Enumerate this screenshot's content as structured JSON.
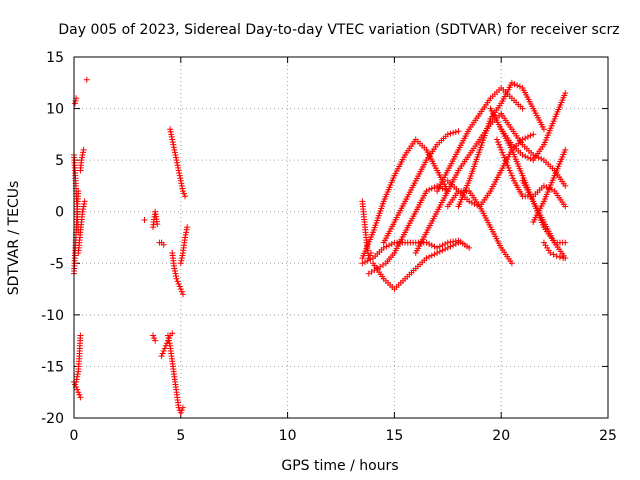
{
  "chart_data": {
    "type": "scatter",
    "title": "Day 005 of 2023, Sidereal Day-to-day VTEC variation (SDTVAR) for receiver scrz",
    "xlabel": "GPS time / hours",
    "ylabel": "SDTVAR / TECUs",
    "xlim": [
      0,
      25
    ],
    "ylim": [
      -20,
      15
    ],
    "xticks": [
      0,
      5,
      10,
      15,
      20,
      25
    ],
    "yticks": [
      -20,
      -15,
      -10,
      -5,
      0,
      5,
      10,
      15
    ],
    "xtick_labels": [
      "0",
      "5",
      "10",
      "15",
      "20",
      "25"
    ],
    "ytick_labels": [
      "-20",
      "-15",
      "-10",
      "-5",
      "0",
      "5",
      "10",
      "15"
    ],
    "grid": true,
    "marker": "+",
    "color": "#ff0000",
    "series": [
      {
        "name": "s1",
        "x": [
          0.0,
          0.1,
          0.2,
          0.3
        ],
        "y": [
          -16.5,
          -17.0,
          -17.5,
          -18.0
        ]
      },
      {
        "name": "s2",
        "x": [
          0.1,
          0.2,
          0.25,
          0.3
        ],
        "y": [
          -16.5,
          -15.5,
          -14.0,
          -12.0
        ]
      },
      {
        "name": "s3",
        "x": [
          0.0,
          0.05,
          0.1,
          0.15,
          0.2
        ],
        "y": [
          -6.0,
          -4.0,
          -2.0,
          0.0,
          2.0
        ]
      },
      {
        "name": "s4",
        "x": [
          0.0,
          0.05,
          0.1,
          0.15,
          0.2
        ],
        "y": [
          5.5,
          4.0,
          2.0,
          0.0,
          -2.0
        ]
      },
      {
        "name": "s5",
        "x": [
          0.2,
          0.3,
          0.4,
          0.5
        ],
        "y": [
          -4.0,
          -2.0,
          0.0,
          1.0
        ]
      },
      {
        "name": "s6",
        "x": [
          0.3,
          0.35,
          0.4,
          0.45
        ],
        "y": [
          4.0,
          5.0,
          5.5,
          6.0
        ]
      },
      {
        "name": "s7",
        "x": [
          0.05,
          0.1
        ],
        "y": [
          10.5,
          11.0
        ]
      },
      {
        "name": "s8",
        "x": [
          0.6
        ],
        "y": [
          12.8
        ]
      },
      {
        "name": "s9",
        "x": [
          3.3
        ],
        "y": [
          -0.8
        ]
      },
      {
        "name": "s10",
        "x": [
          3.7,
          3.8,
          3.9
        ],
        "y": [
          -1.5,
          0.0,
          -1.2
        ]
      },
      {
        "name": "s11",
        "x": [
          3.7,
          3.8
        ],
        "y": [
          -12.0,
          -12.5
        ]
      },
      {
        "name": "s12",
        "x": [
          4.0,
          4.1,
          4.2
        ],
        "y": [
          -3.0,
          -3.0,
          -3.2
        ]
      },
      {
        "name": "s13",
        "x": [
          4.1,
          4.2,
          4.3,
          4.4,
          4.5,
          4.6
        ],
        "y": [
          -14.0,
          -13.5,
          -13.0,
          -12.5,
          -12.0,
          -11.8
        ]
      },
      {
        "name": "s14",
        "x": [
          4.4,
          4.5,
          4.6,
          4.7,
          4.8,
          4.9,
          5.0,
          5.1
        ],
        "y": [
          -12.0,
          -13.0,
          -14.5,
          -16.0,
          -17.5,
          -19.0,
          -19.5,
          -19.0
        ]
      },
      {
        "name": "s15",
        "x": [
          4.5,
          4.6,
          4.7,
          4.8,
          4.9,
          5.0,
          5.1,
          5.2
        ],
        "y": [
          8.0,
          7.0,
          6.0,
          5.0,
          4.0,
          3.0,
          2.0,
          1.5
        ]
      },
      {
        "name": "s16",
        "x": [
          4.6,
          4.7,
          4.8,
          4.9,
          5.0,
          5.1
        ],
        "y": [
          -4.0,
          -5.5,
          -6.5,
          -7.0,
          -7.5,
          -8.0
        ]
      },
      {
        "name": "s17",
        "x": [
          5.0,
          5.1,
          5.2,
          5.3
        ],
        "y": [
          -5.0,
          -4.0,
          -2.5,
          -1.5
        ]
      },
      {
        "name": "s18",
        "x": [
          13.5,
          13.6,
          13.7,
          13.8,
          13.9
        ],
        "y": [
          1.0,
          -1.0,
          -3.0,
          -4.5,
          -4.0
        ]
      },
      {
        "name": "s19",
        "x": [
          13.5,
          14.0,
          14.5,
          15.0,
          15.5,
          16.0,
          16.5,
          17.0,
          17.5
        ],
        "y": [
          -4.5,
          -2.0,
          1.0,
          3.5,
          5.5,
          7.0,
          6.0,
          4.0,
          2.0
        ]
      },
      {
        "name": "s20",
        "x": [
          13.5,
          14.0,
          14.5,
          15.0,
          15.5,
          16.0,
          16.5,
          17.0,
          17.5,
          18.0,
          18.5
        ],
        "y": [
          -5.0,
          -4.5,
          -3.5,
          -3.0,
          -3.0,
          -3.0,
          -3.0,
          -3.5,
          -3.0,
          -2.8,
          -3.5
        ]
      },
      {
        "name": "s21",
        "x": [
          13.8,
          14.2,
          14.6,
          15.0,
          15.5,
          16.0,
          16.5,
          17.0,
          17.5
        ],
        "y": [
          -6.0,
          -5.5,
          -5.0,
          -4.0,
          -2.0,
          0.0,
          2.0,
          2.5,
          2.0
        ]
      },
      {
        "name": "s22",
        "x": [
          14.0,
          14.5,
          15.0,
          15.5,
          16.0,
          16.5,
          17.0,
          17.5,
          18.0
        ],
        "y": [
          -5.0,
          -6.5,
          -7.5,
          -6.5,
          -5.5,
          -4.5,
          -4.0,
          -3.5,
          -3.0
        ]
      },
      {
        "name": "s23",
        "x": [
          14.5,
          15.0,
          15.5,
          16.0,
          16.5,
          17.0,
          17.5,
          18.0
        ],
        "y": [
          -3.0,
          -1.0,
          1.0,
          3.0,
          5.0,
          6.5,
          7.5,
          7.8
        ]
      },
      {
        "name": "s24",
        "x": [
          16.0,
          16.5,
          17.0,
          17.5,
          18.0,
          18.5,
          19.0,
          19.5,
          20.0
        ],
        "y": [
          -4.0,
          -2.0,
          0.0,
          2.0,
          4.0,
          5.5,
          7.0,
          8.5,
          9.5
        ]
      },
      {
        "name": "s25",
        "x": [
          17.0,
          17.5,
          18.0,
          18.5,
          19.0,
          19.5,
          20.0,
          20.5,
          21.0
        ],
        "y": [
          2.0,
          4.0,
          6.0,
          8.0,
          9.5,
          11.0,
          12.0,
          11.0,
          10.0
        ]
      },
      {
        "name": "s26",
        "x": [
          18.0,
          18.5,
          19.0,
          19.5,
          20.0,
          20.5,
          21.0,
          21.5,
          22.0
        ],
        "y": [
          0.5,
          3.0,
          6.0,
          9.0,
          10.5,
          12.5,
          12.0,
          10.0,
          8.0
        ]
      },
      {
        "name": "s27",
        "x": [
          17.5,
          18.0,
          18.5,
          19.0,
          19.5,
          20.0,
          20.5
        ],
        "y": [
          0.5,
          2.0,
          2.0,
          0.5,
          -1.5,
          -3.5,
          -5.0
        ]
      },
      {
        "name": "s28",
        "x": [
          17.5,
          18.0,
          18.5,
          19.0,
          19.5,
          20.0,
          20.5,
          21.0,
          21.5
        ],
        "y": [
          3.0,
          2.0,
          1.0,
          0.5,
          2.0,
          4.0,
          6.0,
          7.0,
          7.5
        ]
      },
      {
        "name": "s29",
        "x": [
          19.5,
          20.0,
          20.5,
          21.0,
          21.5,
          22.0,
          22.5,
          23.0
        ],
        "y": [
          10.0,
          8.0,
          6.5,
          5.5,
          5.0,
          6.5,
          9.0,
          11.5
        ]
      },
      {
        "name": "s30",
        "x": [
          19.8,
          20.2,
          20.6,
          21.0,
          21.5,
          22.0,
          22.5,
          23.0
        ],
        "y": [
          7.0,
          5.0,
          3.0,
          1.5,
          1.5,
          2.5,
          2.0,
          0.5
        ]
      },
      {
        "name": "s31",
        "x": [
          20.0,
          20.5,
          21.0,
          21.5,
          22.0,
          22.5,
          23.0
        ],
        "y": [
          9.5,
          8.0,
          6.5,
          5.5,
          5.0,
          4.0,
          2.5
        ]
      },
      {
        "name": "s32",
        "x": [
          20.0,
          20.5,
          21.0,
          21.5,
          22.0,
          22.5,
          23.0
        ],
        "y": [
          8.0,
          6.0,
          3.5,
          1.0,
          -1.5,
          -3.0,
          -3.0
        ]
      },
      {
        "name": "s33",
        "x": [
          21.0,
          21.5,
          22.0,
          22.5,
          23.0
        ],
        "y": [
          3.0,
          1.0,
          -1.0,
          -3.0,
          -4.5
        ]
      },
      {
        "name": "s34",
        "x": [
          21.5,
          22.0,
          22.5,
          23.0
        ],
        "y": [
          -1.0,
          1.0,
          3.5,
          6.0
        ]
      },
      {
        "name": "s35",
        "x": [
          22.0,
          22.3,
          22.6,
          22.9
        ],
        "y": [
          -3.0,
          -4.0,
          -4.3,
          -4.5
        ]
      }
    ]
  }
}
